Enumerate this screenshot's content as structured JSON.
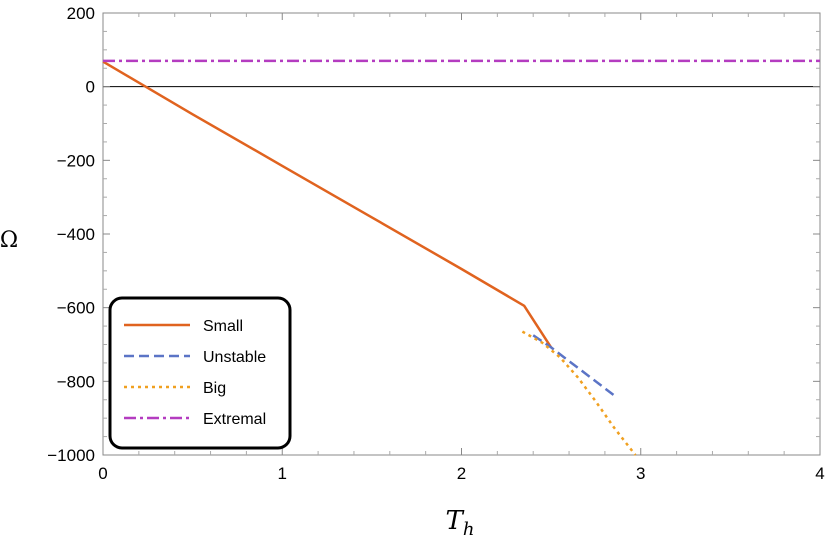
{
  "chart_data": {
    "type": "line",
    "xlabel": "T",
    "xlabel_sub": "h",
    "ylabel": "Ω",
    "xlim": [
      0,
      4
    ],
    "ylim": [
      -1000,
      200
    ],
    "x_ticks": [
      0,
      1,
      2,
      3,
      4
    ],
    "x_tick_labels": [
      "0",
      "1",
      "2",
      "3",
      "4"
    ],
    "y_ticks": [
      -1000,
      -800,
      -600,
      -400,
      -200,
      0,
      200
    ],
    "y_tick_labels": [
      "−1000",
      "−800",
      "−600",
      "−400",
      "−200",
      "0",
      "200"
    ],
    "grid": false,
    "legend_position": "bottom-left",
    "series": [
      {
        "name": "Small",
        "color": "#e0631f",
        "style": "solid",
        "x": [
          0,
          0.5,
          1.0,
          1.5,
          2.0,
          2.35,
          2.5
        ],
        "y": [
          68,
          -75,
          -215,
          -355,
          -495,
          -595,
          -708
        ]
      },
      {
        "name": "Unstable",
        "color": "#5b74c6",
        "style": "dashed",
        "x": [
          2.4,
          2.5,
          2.6,
          2.7,
          2.87
        ],
        "y": [
          -675,
          -708,
          -745,
          -782,
          -845
        ]
      },
      {
        "name": "Big",
        "color": "#f0a020",
        "style": "dotted",
        "x": [
          2.34,
          2.45,
          2.55,
          2.65,
          2.75,
          2.85,
          2.97
        ],
        "y": [
          -665,
          -695,
          -735,
          -790,
          -855,
          -925,
          -1000
        ]
      },
      {
        "name": "Extremal",
        "color": "#b43cc0",
        "style": "dashdot",
        "x": [
          0,
          4
        ],
        "y": [
          70,
          70
        ]
      }
    ]
  }
}
